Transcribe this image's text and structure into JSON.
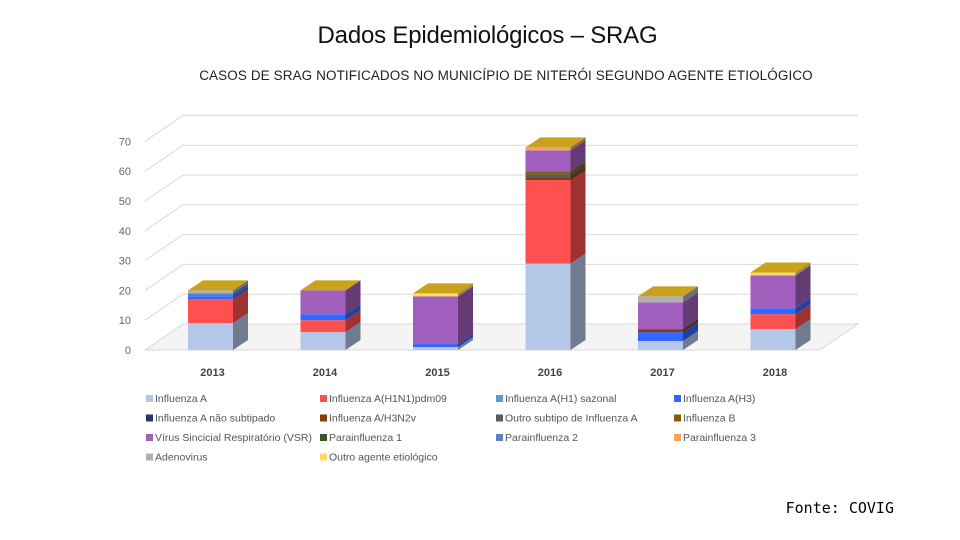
{
  "title": "Dados Epidemiológicos – SRAG",
  "subtitle": "CASOS DE SRAG NOTIFICADOS NO MUNICÍPIO DE NITERÓI SEGUNDO AGENTE ETIOLÓGICO",
  "source": "Fonte: COVIG",
  "chart_data": {
    "type": "bar",
    "stacked": true,
    "style": "3d",
    "title": "CASOS DE SRAG NOTIFICADOS NO MUNICÍPIO DE NITERÓI SEGUNDO AGENTE ETIOLÓGICO",
    "xlabel": "",
    "ylabel": "",
    "ylim": [
      0,
      70
    ],
    "yticks": [
      0,
      10,
      20,
      30,
      40,
      50,
      60,
      70
    ],
    "grid": true,
    "legend_position": "bottom",
    "categories": [
      "2013",
      "2014",
      "2015",
      "2016",
      "2017",
      "2018"
    ],
    "series": [
      {
        "name": "Influenza A",
        "color": "#b4c7e7",
        "values": [
          9,
          6,
          1,
          29,
          3,
          7
        ]
      },
      {
        "name": "Influenza A(H1N1)pdm09",
        "color": "#ff5050",
        "values": [
          8,
          4,
          0,
          28,
          0,
          5
        ]
      },
      {
        "name": "Influenza A(H1) sazonal",
        "color": "#5b9bd5",
        "values": [
          0,
          0,
          0,
          0,
          0,
          0
        ]
      },
      {
        "name": "Influenza A(H3)",
        "color": "#3366ff",
        "values": [
          1,
          2,
          1,
          0,
          3,
          2
        ]
      },
      {
        "name": "Influenza A não subtipado",
        "color": "#1f3864",
        "values": [
          0,
          0,
          0,
          0,
          0,
          0
        ]
      },
      {
        "name": "Influenza A/H3N2v",
        "color": "#843c0c",
        "values": [
          0,
          0,
          0,
          1,
          1,
          0
        ]
      },
      {
        "name": "Outro subtipo de Influenza A",
        "color": "#595959",
        "values": [
          0,
          0,
          0,
          1,
          0,
          0
        ]
      },
      {
        "name": "Influenza B",
        "color": "#7f6000",
        "values": [
          0,
          0,
          0,
          1,
          0,
          0
        ]
      },
      {
        "name": "Vírus Sincicial Respiratório (VSR)",
        "color": "#a15fbd",
        "values": [
          0,
          8,
          16,
          7,
          9,
          11
        ]
      },
      {
        "name": "Parainfluenza 1",
        "color": "#375623",
        "values": [
          0,
          0,
          0,
          0,
          0,
          0
        ]
      },
      {
        "name": "Parainfluenza 2",
        "color": "#5b7fbf",
        "values": [
          1,
          0,
          0,
          0,
          0,
          0
        ]
      },
      {
        "name": "Parainfluenza 3",
        "color": "#f4a460",
        "values": [
          0,
          0,
          0,
          1,
          0,
          0
        ]
      },
      {
        "name": "Adenovirus",
        "color": "#b0b0b0",
        "values": [
          1,
          0,
          0,
          0,
          2,
          0
        ]
      },
      {
        "name": "Outro agente etiológico",
        "color": "#ffd966",
        "values": [
          0,
          0,
          1,
          0,
          0,
          1
        ]
      }
    ]
  }
}
